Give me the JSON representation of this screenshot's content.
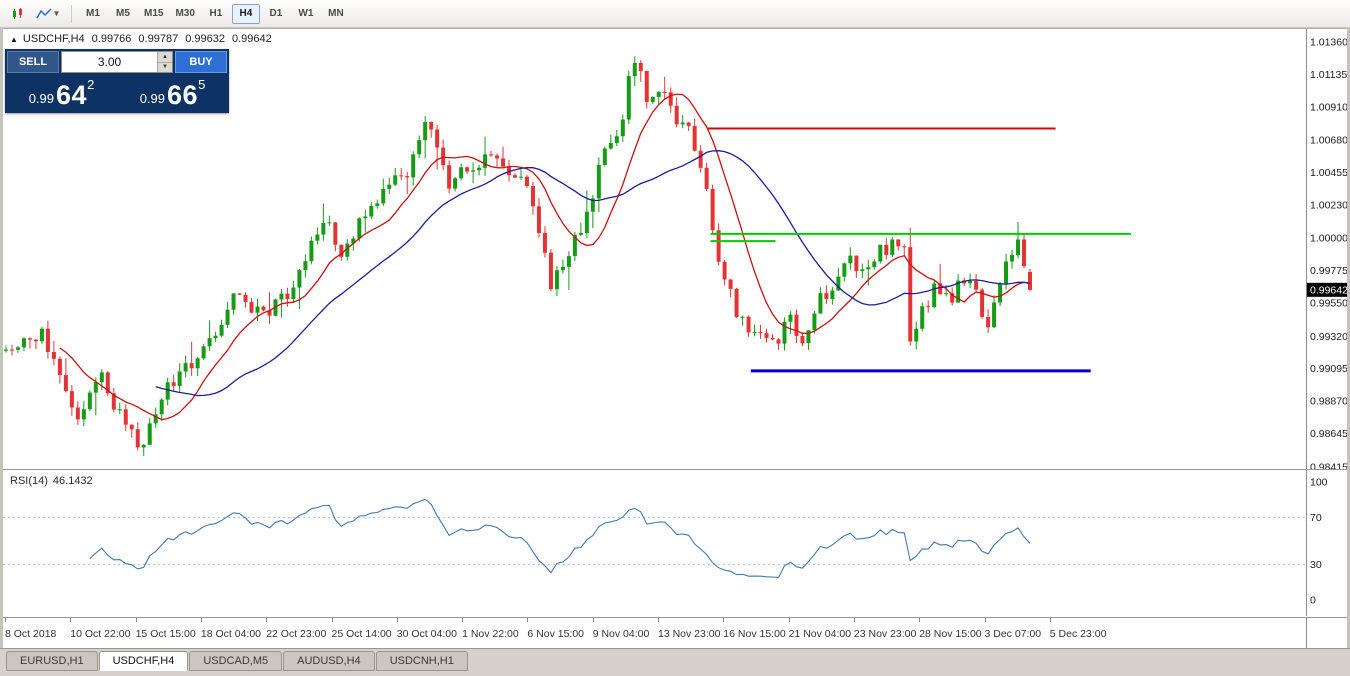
{
  "colors": {
    "bull": "#169b16",
    "bear": "#e23434",
    "ma_fast": "#cc1111",
    "ma_slow": "#1c1c9e",
    "rsi_line": "#4079b8",
    "badge_bg": "#000000",
    "badge_text": "#ffffff",
    "panel_bg": "#0e3264",
    "sell_button_bg": "#31568a",
    "buy_button_bg": "#2e6fd6"
  },
  "toolbar": {
    "icons": [
      {
        "name": "chart-type-icon"
      },
      {
        "name": "indicators-icon"
      }
    ],
    "timeframes": [
      "M1",
      "M5",
      "M15",
      "M30",
      "H1",
      "H4",
      "D1",
      "W1",
      "MN"
    ],
    "active_timeframe": "H4"
  },
  "chart": {
    "header": {
      "symbol": "USDCHF,H4",
      "open": "0.99766",
      "high": "0.99787",
      "low": "0.99632",
      "close": "0.99642"
    },
    "trade_panel": {
      "sell_label": "SELL",
      "buy_label": "BUY",
      "volume": "3.00",
      "sell_price_prefix": "0.99",
      "sell_price_digits": "64",
      "sell_price_sup": "2",
      "buy_price_prefix": "0.99",
      "buy_price_digits": "66",
      "buy_price_sup": "5"
    },
    "price_axis_labels": [
      "1.01360",
      "1.01135",
      "1.00910",
      "1.00680",
      "1.00455",
      "1.00230",
      "1.00000",
      "0.99775",
      "0.99550",
      "0.99320",
      "0.99095",
      "0.98870",
      "0.98645",
      "0.98415"
    ],
    "current_price": "0.99642",
    "time_axis_labels": [
      "8 Oct 2018",
      "10 Oct 22:00",
      "15 Oct 15:00",
      "18 Oct 04:00",
      "22 Oct 23:00",
      "25 Oct 14:00",
      "30 Oct 04:00",
      "1 Nov 22:00",
      "6 Nov 15:00",
      "9 Nov 04:00",
      "13 Nov 23:00",
      "16 Nov 15:00",
      "21 Nov 04:00",
      "23 Nov 23:00",
      "28 Nov 15:00",
      "3 Dec 07:00",
      "5 Dec 23:00"
    ],
    "rsi": {
      "name": "RSI(14)",
      "value": "46.1432",
      "period": 14,
      "levels": [
        100,
        70,
        30,
        0
      ]
    },
    "chart_data": {
      "type": "candlestick",
      "symbol": "USDCHF",
      "timeframe": "H4",
      "price_top": 1.0145,
      "price_bottom": 0.984,
      "num_candles": 172,
      "last_candle": {
        "open": 0.99766,
        "high": 0.99787,
        "low": 0.99632,
        "close": 0.99642
      },
      "ma_fast_period": 10,
      "ma_slow_period": 26,
      "price_path": [
        [
          0,
          0.9922
        ],
        [
          0.034,
          0.9936
        ],
        [
          0.05,
          0.9915
        ],
        [
          0.072,
          0.9872
        ],
        [
          0.092,
          0.9906
        ],
        [
          0.118,
          0.9865
        ],
        [
          0.135,
          0.9858
        ],
        [
          0.159,
          0.9896
        ],
        [
          0.198,
          0.9928
        ],
        [
          0.224,
          0.996
        ],
        [
          0.253,
          0.9945
        ],
        [
          0.278,
          0.9962
        ],
        [
          0.288,
          0.9975
        ],
        [
          0.311,
          1.0015
        ],
        [
          0.327,
          0.9992
        ],
        [
          0.348,
          1.0012
        ],
        [
          0.372,
          1.0038
        ],
        [
          0.394,
          1.0045
        ],
        [
          0.413,
          1.0085
        ],
        [
          0.42,
          1.006
        ],
        [
          0.432,
          1.0038
        ],
        [
          0.454,
          1.0048
        ],
        [
          0.473,
          1.0062
        ],
        [
          0.491,
          1.0038
        ],
        [
          0.507,
          1.0042
        ],
        [
          0.524,
          1.0
        ],
        [
          0.533,
          0.9965
        ],
        [
          0.549,
          0.999
        ],
        [
          0.565,
          1.0012
        ],
        [
          0.585,
          1.006
        ],
        [
          0.601,
          1.0082
        ],
        [
          0.612,
          1.012
        ],
        [
          0.618,
          1.0128
        ],
        [
          0.628,
          1.0088
        ],
        [
          0.638,
          1.0105
        ],
        [
          0.655,
          1.0082
        ],
        [
          0.671,
          1.007
        ],
        [
          0.681,
          1.0045
        ],
        [
          0.694,
          0.9988
        ],
        [
          0.713,
          0.9948
        ],
        [
          0.732,
          0.9932
        ],
        [
          0.749,
          0.9925
        ],
        [
          0.765,
          0.9942
        ],
        [
          0.779,
          0.993
        ],
        [
          0.794,
          0.9956
        ],
        [
          0.81,
          0.997
        ],
        [
          0.823,
          0.9986
        ],
        [
          0.839,
          0.9978
        ],
        [
          0.854,
          0.9992
        ],
        [
          0.868,
          0.9998
        ],
        [
          0.877,
          0.999
        ],
        [
          0.883,
          0.9934
        ],
        [
          0.894,
          0.995
        ],
        [
          0.908,
          0.9966
        ],
        [
          0.923,
          0.9955
        ],
        [
          0.935,
          0.9972
        ],
        [
          0.947,
          0.9966
        ],
        [
          0.959,
          0.9936
        ],
        [
          0.971,
          0.997
        ],
        [
          0.982,
          0.9988
        ],
        [
          0.988,
          1.0002
        ],
        [
          0.995,
          0.9972
        ],
        [
          1,
          0.99642
        ]
      ],
      "hlines": [
        {
          "color": "#e00000",
          "price": 1.0076,
          "t1": 0.684,
          "t2": 1.022,
          "width": 2
        },
        {
          "color": "#00cc00",
          "price": 1.0003,
          "t1": 0.687,
          "t2": 1.095,
          "width": 2
        },
        {
          "color": "#00cc00",
          "price": 0.9998,
          "t1": 0.687,
          "t2": 0.75,
          "width": 2
        },
        {
          "color": "#0000d8",
          "price": 0.9908,
          "t1": 0.726,
          "t2": 1.056,
          "width": 3
        }
      ]
    }
  },
  "tabs": [
    {
      "label": "EURUSD,H1",
      "active": false
    },
    {
      "label": "USDCHF,H4",
      "active": true
    },
    {
      "label": "USDCAD,M5",
      "active": false
    },
    {
      "label": "AUDUSD,H4",
      "active": false
    },
    {
      "label": "USDCNH,H1",
      "active": false
    }
  ]
}
